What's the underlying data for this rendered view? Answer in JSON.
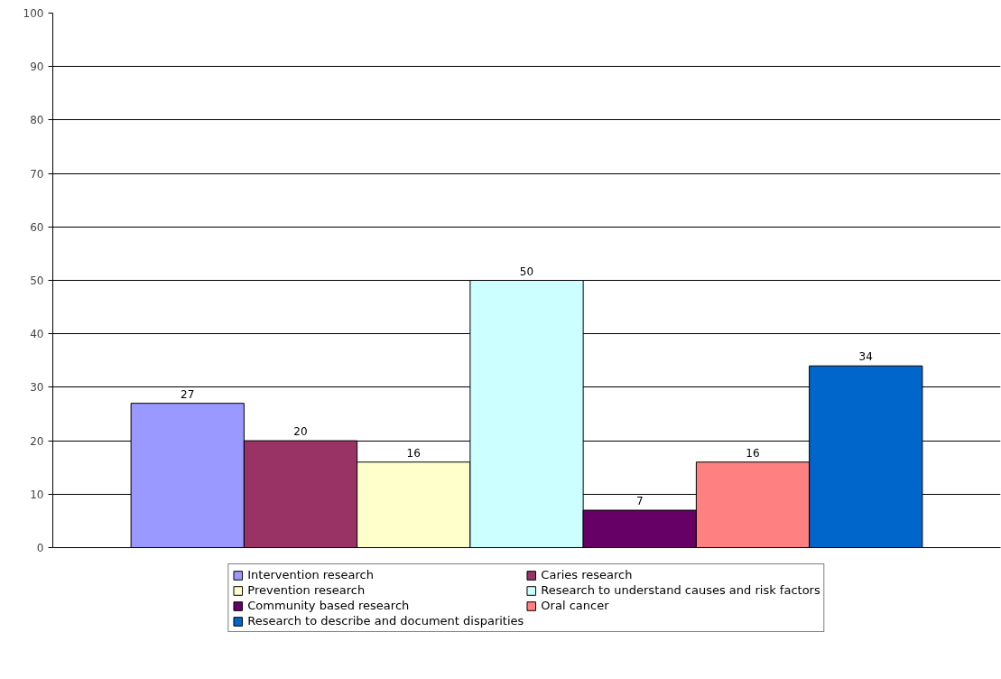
{
  "chart_data": {
    "type": "bar",
    "categories": [
      null
    ],
    "series": [
      {
        "name": "Intervention research",
        "color": "#9999ff",
        "values": [
          27
        ]
      },
      {
        "name": "Caries research",
        "color": "#993366",
        "values": [
          20
        ]
      },
      {
        "name": "Prevention research",
        "color": "#ffffcc",
        "values": [
          16
        ]
      },
      {
        "name": "Research to understand causes and risk factors",
        "color": "#ccffff",
        "values": [
          50
        ]
      },
      {
        "name": "Community based research",
        "color": "#660066",
        "values": [
          7
        ]
      },
      {
        "name": "Oral cancer",
        "color": "#ff8080",
        "values": [
          16
        ]
      },
      {
        "name": "Research to describe and document disparities",
        "color": "#0066cc",
        "values": [
          34
        ]
      }
    ],
    "ylim": [
      0,
      100
    ],
    "yticks": [
      0,
      10,
      20,
      30,
      40,
      50,
      60,
      70,
      80,
      90,
      100
    ],
    "grid": "y",
    "legend": "bottom",
    "data_labels": true
  }
}
